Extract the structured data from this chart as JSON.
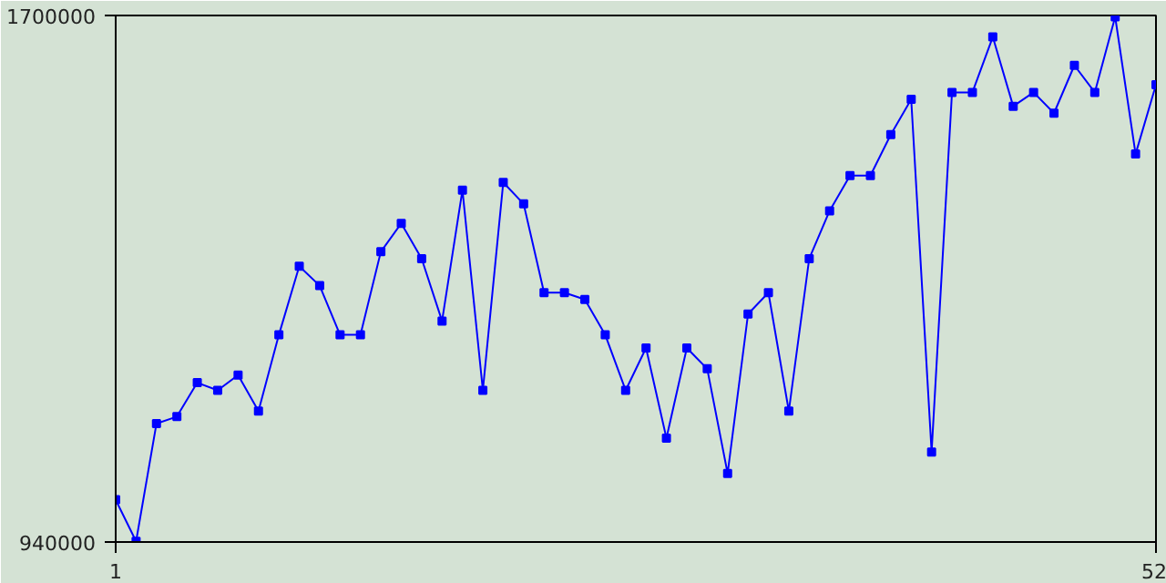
{
  "chart_data": {
    "type": "line",
    "x": [
      1,
      2,
      3,
      4,
      5,
      6,
      7,
      8,
      9,
      10,
      11,
      12,
      13,
      14,
      15,
      16,
      17,
      18,
      19,
      20,
      21,
      22,
      23,
      24,
      25,
      26,
      27,
      28,
      29,
      30,
      31,
      32,
      33,
      34,
      35,
      36,
      37,
      38,
      39,
      40,
      41,
      42,
      43,
      44,
      45,
      46,
      47,
      48,
      49,
      50,
      51,
      52
    ],
    "series": [
      {
        "color": "#0000ff",
        "values": [
          1001000,
          941000,
          1111000,
          1121000,
          1170000,
          1159000,
          1181000,
          1129000,
          1239000,
          1338000,
          1310000,
          1239000,
          1239000,
          1359000,
          1400000,
          1349000,
          1259000,
          1448000,
          1159000,
          1459000,
          1428000,
          1300000,
          1300000,
          1290000,
          1239000,
          1159000,
          1220000,
          1090000,
          1220000,
          1190000,
          1039000,
          1269000,
          1300000,
          1129000,
          1349000,
          1418000,
          1469000,
          1469000,
          1528000,
          1579000,
          1070000,
          1589000,
          1589000,
          1669000,
          1569000,
          1589000,
          1559000,
          1628000,
          1589000,
          1698000,
          1500000,
          1600000
        ]
      }
    ],
    "xlim": [
      1,
      52
    ],
    "ylim": [
      940000,
      1700000
    ],
    "xticks": [
      1,
      52
    ],
    "yticks": [
      {
        "value": 940000,
        "label": "940000"
      },
      {
        "value": 1700000,
        "label": "1700000"
      }
    ],
    "marker": "square",
    "line_style": "solid"
  }
}
